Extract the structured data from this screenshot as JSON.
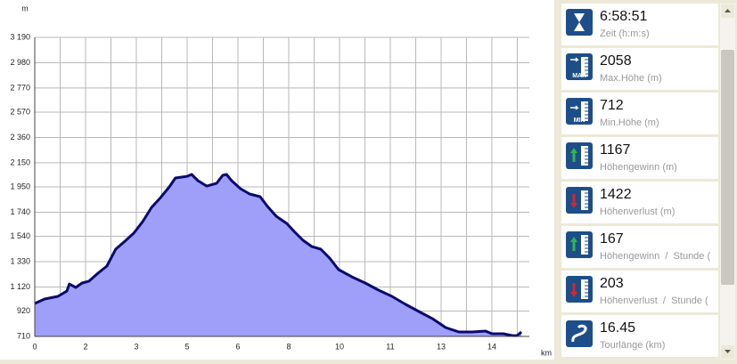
{
  "chart_data": {
    "type": "area",
    "y_unit": "m",
    "x_unit": "km",
    "x": [
      0,
      0.31,
      0.73,
      1.01,
      1.09,
      1.29,
      1.49,
      1.71,
      1.99,
      2.27,
      2.55,
      2.84,
      3.12,
      3.4,
      3.68,
      3.96,
      4.24,
      4.43,
      4.8,
      4.94,
      5.14,
      5.42,
      5.73,
      5.92,
      6.04,
      6.2,
      6.48,
      6.77,
      7.1,
      7.33,
      7.61,
      7.94,
      8.17,
      8.45,
      8.73,
      9.01,
      9.29,
      9.57,
      9.99,
      10.41,
      10.83,
      11.25,
      11.68,
      12.1,
      12.52,
      12.94,
      13.36,
      13.78,
      14.2,
      14.4,
      14.76,
      15.05,
      15.19,
      15.33
    ],
    "series": [
      {
        "color": "#0a0a6e",
        "fill": "#9f9ffa",
        "values": [
          983,
          1020,
          1042,
          1086,
          1145,
          1116,
          1153,
          1168,
          1234,
          1293,
          1433,
          1500,
          1566,
          1662,
          1780,
          1861,
          1950,
          2024,
          2038,
          2053,
          2002,
          1957,
          1980,
          2046,
          2053,
          2002,
          1935,
          1891,
          1869,
          1788,
          1706,
          1647,
          1581,
          1507,
          1455,
          1433,
          1359,
          1264,
          1204,
          1153,
          1094,
          1042,
          976,
          917,
          858,
          784,
          747,
          747,
          754,
          732,
          732,
          717,
          717,
          747
        ]
      }
    ],
    "xlim": [
      0,
      15.58
    ],
    "xticks": [
      0,
      {
        "value": 1.6,
        "label": "2"
      },
      {
        "value": 3.2,
        "label": "3"
      },
      {
        "value": 4.8,
        "label": "5"
      },
      {
        "value": 6.4,
        "label": "6"
      },
      8,
      {
        "value": 9.6,
        "label": "10"
      },
      {
        "value": 11.2,
        "label": "11"
      },
      {
        "value": 12.8,
        "label": "13"
      },
      {
        "value": 14.4,
        "label": "14"
      }
    ],
    "ylim": [
      710,
      3190
    ],
    "yticks": [
      710,
      920,
      {
        "value": 1120,
        "label": "1 120"
      },
      {
        "value": 1330,
        "label": "1 330"
      },
      {
        "value": 1540,
        "label": "1 540"
      },
      {
        "value": 1740,
        "label": "1 740"
      },
      {
        "value": 1950,
        "label": "1 950"
      },
      {
        "value": 2150,
        "label": "2 150"
      },
      {
        "value": 2360,
        "label": "2 360"
      },
      {
        "value": 2570,
        "label": "2 570"
      },
      {
        "value": 2770,
        "label": "2 770"
      },
      {
        "value": 2980,
        "label": "2 980"
      },
      {
        "value": 3190,
        "label": "3 190"
      }
    ],
    "grid": true
  },
  "stats": [
    {
      "value": "6:58:51",
      "label": "Zeit (h:m:s)"
    },
    {
      "value": 2058,
      "label": "Max.Höhe (m)",
      "icon_text": "MAX"
    },
    {
      "value": 712,
      "label": "Min.Höhe (m)",
      "icon_text": "MIN"
    },
    {
      "value": 1167,
      "label": "Höhengewinn (m)"
    },
    {
      "value": 1422,
      "label": "Höhenverlust (m)"
    },
    {
      "value": 167,
      "label": "Höhengewinn  /  Stunde ("
    },
    {
      "value": 203,
      "label": "Höhenverlust  /  Stunde ("
    },
    {
      "value": 16.45,
      "label": "Tourlänge (km)"
    }
  ]
}
